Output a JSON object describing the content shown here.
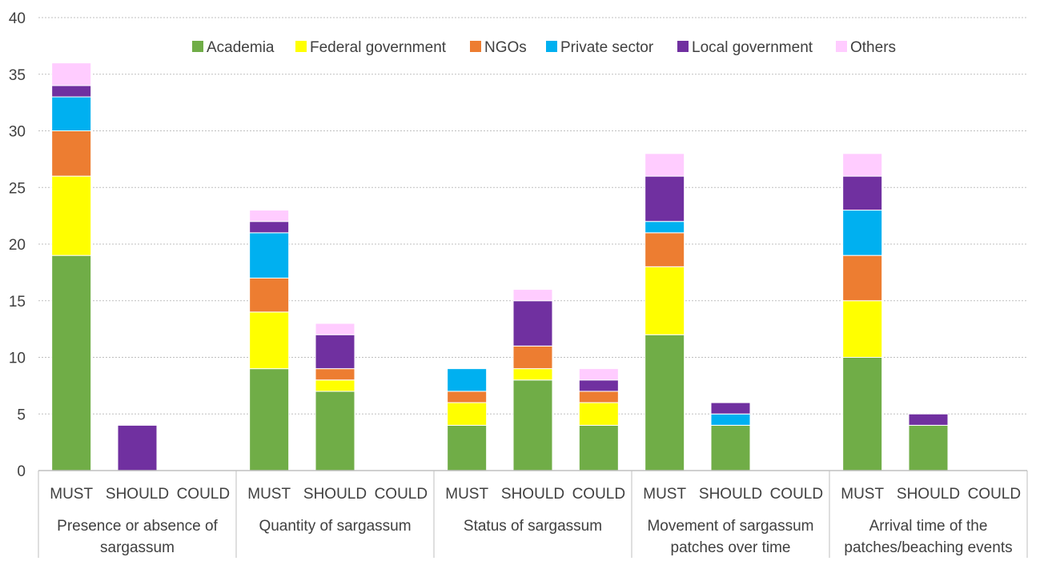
{
  "chart_data": {
    "type": "bar",
    "stacked": true,
    "title": "",
    "xlabel": "",
    "ylabel": "",
    "ylim": [
      0,
      40
    ],
    "yticks": [
      0,
      5,
      10,
      15,
      20,
      25,
      30,
      35,
      40
    ],
    "grid": true,
    "legend_position": "top",
    "groups": [
      {
        "label": "Presence or absence of sargassum",
        "label_lines": [
          "Presence or absence of",
          "sargassum"
        ]
      },
      {
        "label": "Quantity of sargassum",
        "label_lines": [
          "Quantity of sargassum"
        ]
      },
      {
        "label": "Status of sargassum",
        "label_lines": [
          "Status of sargassum"
        ]
      },
      {
        "label": "Movement of sargassum patches over time",
        "label_lines": [
          "Movement of sargassum",
          "patches over time"
        ]
      },
      {
        "label": "Arrival time of the patches/beaching events",
        "label_lines": [
          "Arrival time of the",
          "patches/beaching events"
        ]
      }
    ],
    "subcategories": [
      "MUST",
      "SHOULD",
      "COULD"
    ],
    "series": [
      {
        "name": "Academia",
        "color": "#70AD47",
        "values": [
          19,
          0,
          0,
          9,
          7,
          0,
          4,
          8,
          4,
          12,
          4,
          0,
          10,
          4,
          0
        ]
      },
      {
        "name": "Federal government",
        "color": "#FFFF00",
        "values": [
          7,
          0,
          0,
          5,
          1,
          0,
          2,
          1,
          2,
          6,
          0,
          0,
          5,
          0,
          0
        ]
      },
      {
        "name": "NGOs",
        "color": "#ED7D31",
        "values": [
          4,
          0,
          0,
          3,
          1,
          0,
          1,
          2,
          1,
          3,
          0,
          0,
          4,
          0,
          0
        ]
      },
      {
        "name": "Private sector",
        "color": "#00B0F0",
        "values": [
          3,
          0,
          0,
          4,
          0,
          0,
          2,
          0,
          0,
          1,
          1,
          0,
          4,
          0,
          0
        ]
      },
      {
        "name": "Local government",
        "color": "#7030A0",
        "values": [
          1,
          4,
          0,
          1,
          3,
          0,
          0,
          4,
          1,
          4,
          1,
          0,
          3,
          1,
          0
        ]
      },
      {
        "name": "Others",
        "color": "#FFCCFF",
        "values": [
          2,
          0,
          0,
          1,
          1,
          0,
          0,
          1,
          1,
          2,
          0,
          0,
          2,
          0,
          0
        ]
      }
    ]
  }
}
